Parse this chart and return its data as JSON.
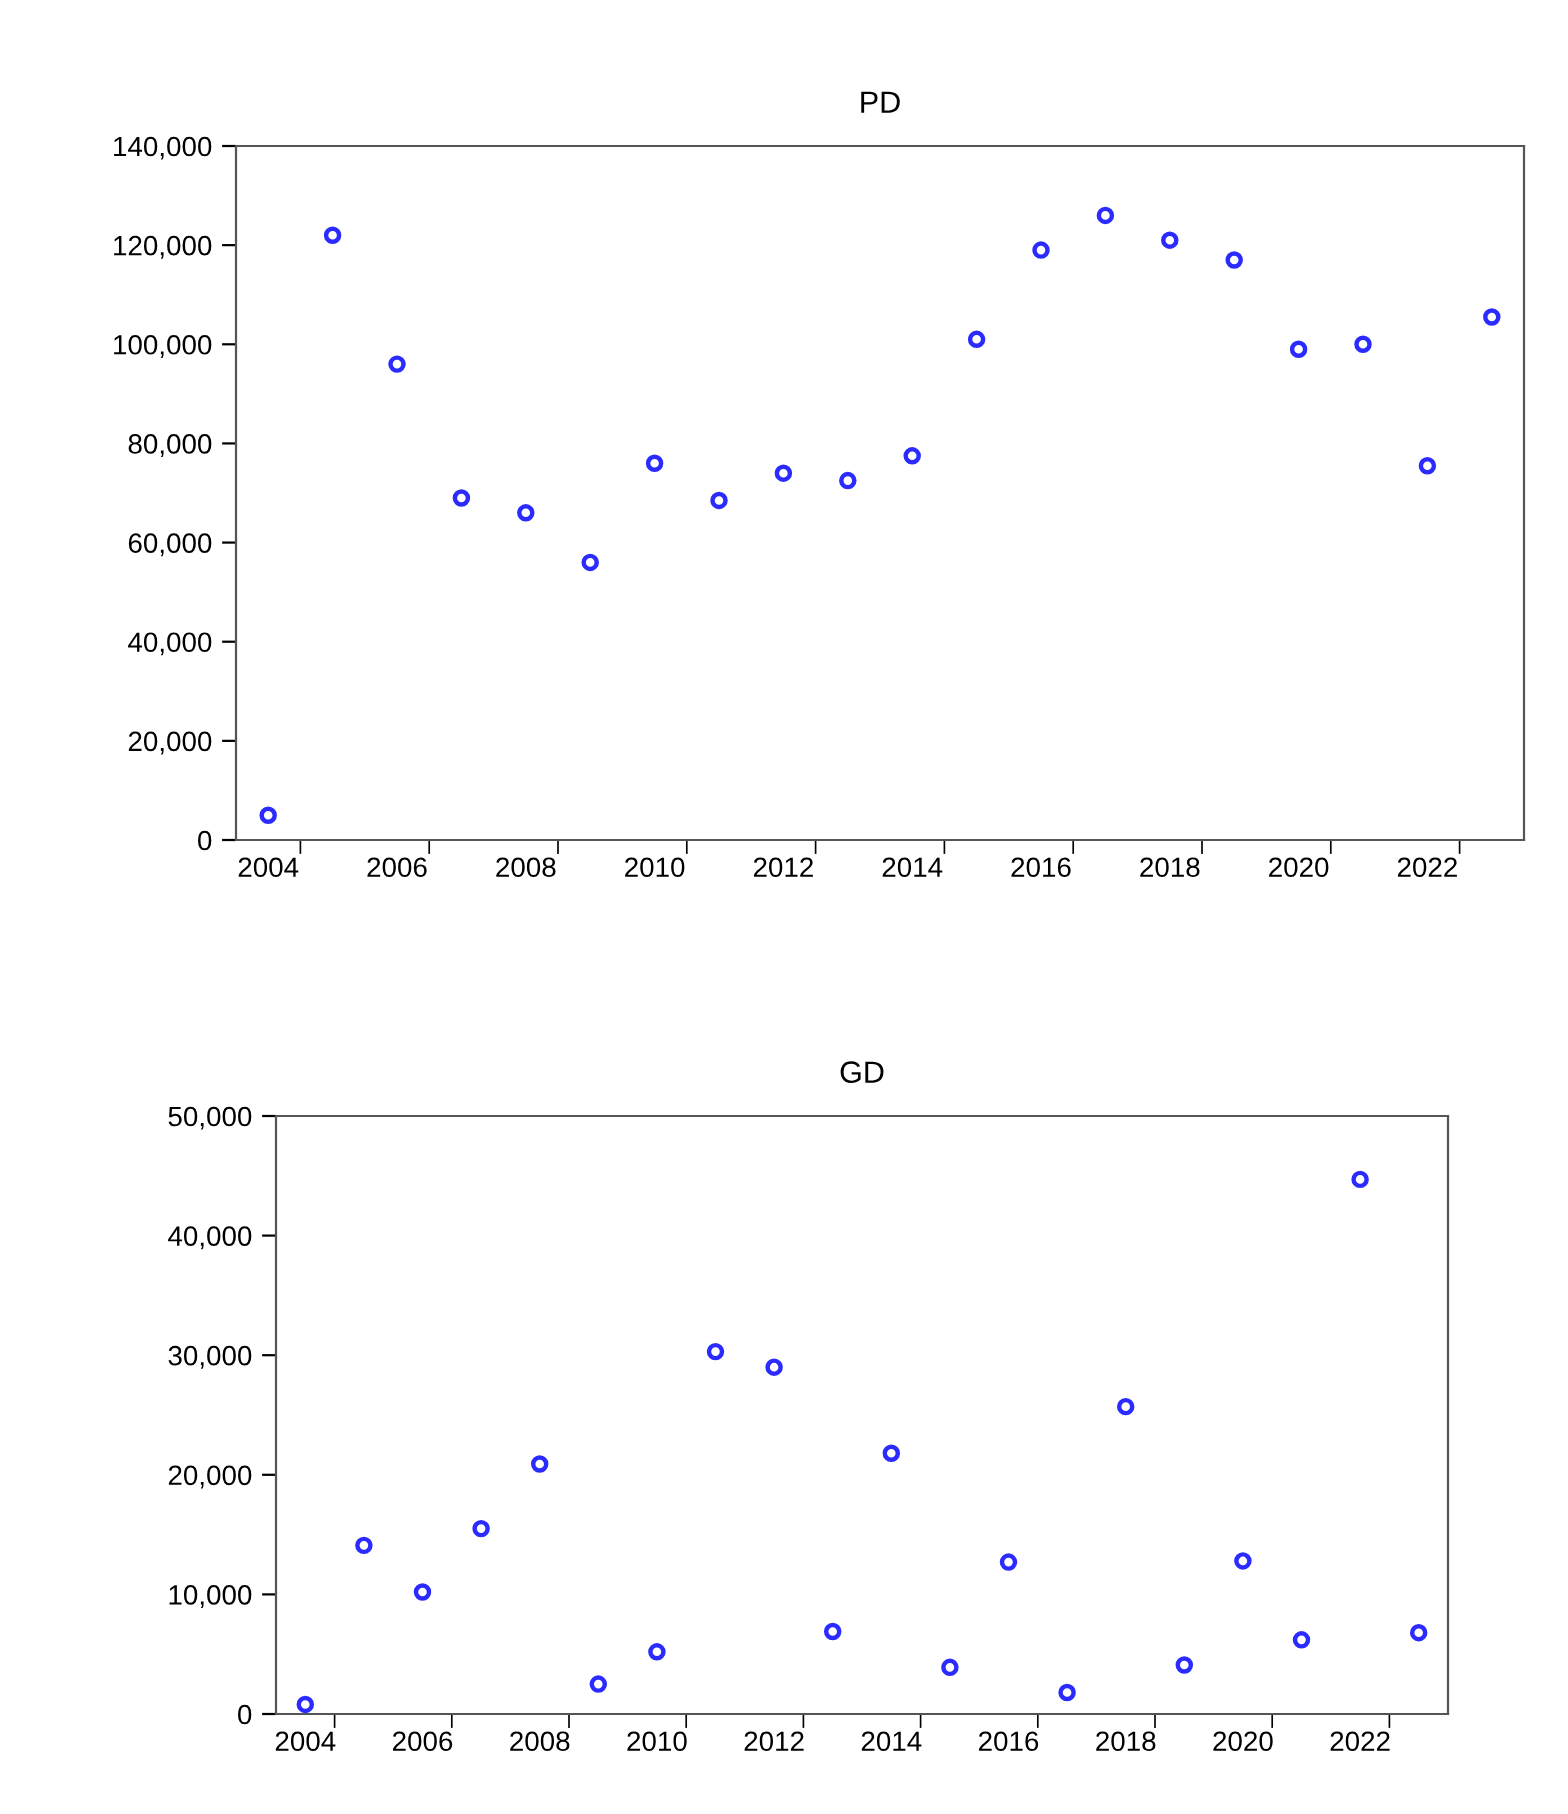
{
  "chart_data": [
    {
      "type": "scatter",
      "title": "PD",
      "marker": "circle",
      "grid": false,
      "x": [
        2004,
        2005,
        2006,
        2007,
        2008,
        2009,
        2010,
        2011,
        2012,
        2013,
        2014,
        2015,
        2016,
        2017,
        2018,
        2019,
        2020,
        2021,
        2022,
        2023
      ],
      "series": [
        {
          "color": "#2b2bff",
          "values": [
            5000,
            122000,
            96000,
            69000,
            66000,
            56000,
            76000,
            68500,
            74000,
            72500,
            77500,
            101000,
            119000,
            126000,
            121000,
            117000,
            99000,
            100000,
            75500,
            105500
          ]
        }
      ],
      "xlim": [
        2003.5,
        2023.5
      ],
      "xticks": [
        2004,
        2006,
        2008,
        2010,
        2012,
        2014,
        2016,
        2018,
        2020,
        2022,
        {
          "value": 2004.5,
          "label": null
        },
        {
          "value": 2006.5,
          "label": null
        },
        {
          "value": 2008.5,
          "label": null
        },
        {
          "value": 2010.5,
          "label": null
        },
        {
          "value": 2012.5,
          "label": null
        },
        {
          "value": 2014.5,
          "label": null
        },
        {
          "value": 2016.5,
          "label": null
        },
        {
          "value": 2018.5,
          "label": null
        },
        {
          "value": 2020.5,
          "label": null
        },
        {
          "value": 2022.5,
          "label": null
        }
      ],
      "ylim": [
        0,
        140000
      ],
      "yticks": [
        {
          "value": 0,
          "label": "0"
        },
        {
          "value": 20000,
          "label": "20,000"
        },
        {
          "value": 40000,
          "label": "40,000"
        },
        {
          "value": 60000,
          "label": "60,000"
        },
        {
          "value": 80000,
          "label": "80,000"
        },
        {
          "value": 100000,
          "label": "100,000"
        },
        {
          "value": 120000,
          "label": "120,000"
        },
        {
          "value": 140000,
          "label": "140,000"
        }
      ]
    },
    {
      "type": "scatter",
      "title": "GD",
      "marker": "circle",
      "grid": false,
      "x": [
        2004,
        2005,
        2006,
        2007,
        2008,
        2009,
        2010,
        2011,
        2012,
        2013,
        2014,
        2015,
        2016,
        2017,
        2018,
        2019,
        2020,
        2021,
        2022,
        2023
      ],
      "series": [
        {
          "color": "#2b2bff",
          "values": [
            800,
            14100,
            10200,
            15500,
            20900,
            2500,
            5200,
            30300,
            29000,
            6900,
            21800,
            3900,
            12700,
            1800,
            25700,
            4100,
            12800,
            6200,
            44700,
            6800
          ]
        }
      ],
      "xlim": [
        2003.5,
        2023.5
      ],
      "xticks": [
        2004,
        2006,
        2008,
        2010,
        2012,
        2014,
        2016,
        2018,
        2020,
        2022,
        {
          "value": 2004.5,
          "label": null
        },
        {
          "value": 2006.5,
          "label": null
        },
        {
          "value": 2008.5,
          "label": null
        },
        {
          "value": 2010.5,
          "label": null
        },
        {
          "value": 2012.5,
          "label": null
        },
        {
          "value": 2014.5,
          "label": null
        },
        {
          "value": 2016.5,
          "label": null
        },
        {
          "value": 2018.5,
          "label": null
        },
        {
          "value": 2020.5,
          "label": null
        },
        {
          "value": 2022.5,
          "label": null
        }
      ],
      "ylim": [
        0,
        50000
      ],
      "yticks": [
        {
          "value": 0,
          "label": "0"
        },
        {
          "value": 10000,
          "label": "10,000"
        },
        {
          "value": 20000,
          "label": "20,000"
        },
        {
          "value": 30000,
          "label": "30,000"
        },
        {
          "value": 40000,
          "label": "40,000"
        },
        {
          "value": 50000,
          "label": "50,000"
        }
      ]
    }
  ]
}
